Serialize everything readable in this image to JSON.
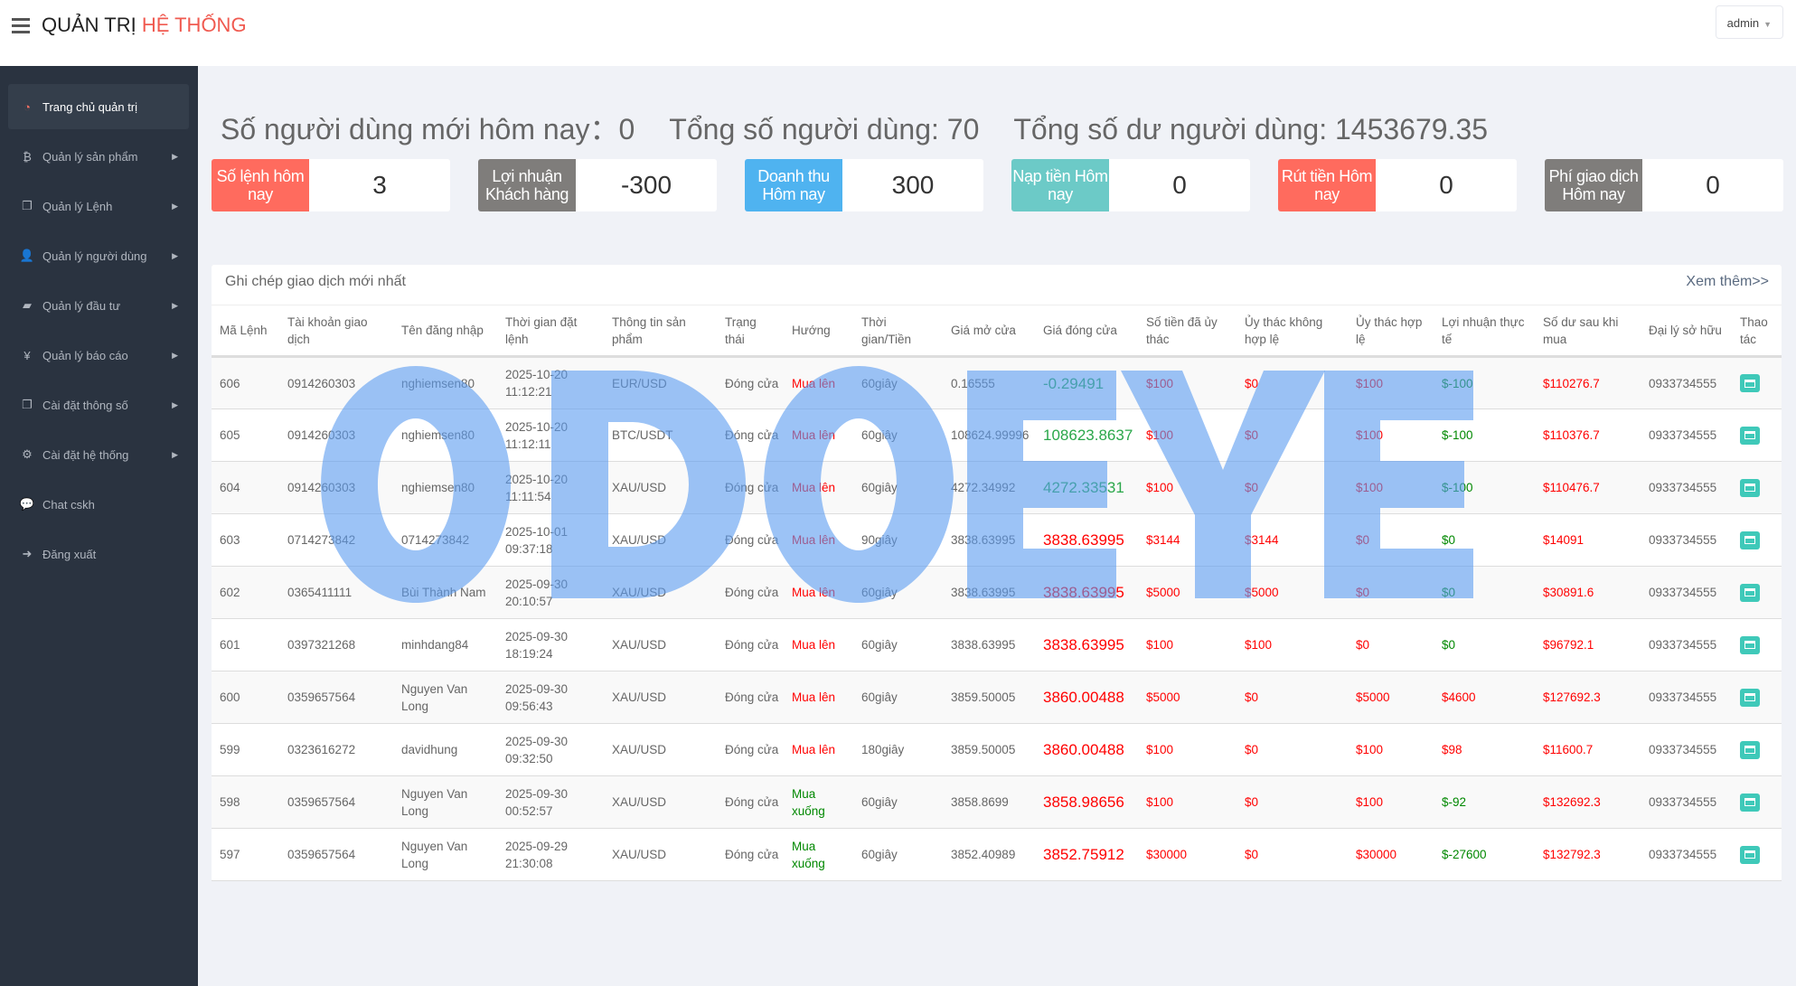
{
  "header": {
    "brand_part1": "QUẢN TRỊ",
    "brand_part2": "HỆ THỐNG",
    "user": "admin"
  },
  "sidebar": {
    "items": [
      {
        "label": "Trang chủ quản trị",
        "icon": "dashboard-icon",
        "glyph": "◔",
        "active": true
      },
      {
        "label": "Quản lý sản phẩm",
        "icon": "bitcoin-icon",
        "glyph": "₿"
      },
      {
        "label": "Quản lý Lệnh",
        "icon": "copy-icon",
        "glyph": "❐"
      },
      {
        "label": "Quản lý người dùng",
        "icon": "user-icon",
        "glyph": "👤"
      },
      {
        "label": "Quản lý đầu tư",
        "icon": "book-icon",
        "glyph": "▰"
      },
      {
        "label": "Quản lý báo cáo",
        "icon": "yen-icon",
        "glyph": "¥"
      },
      {
        "label": "Cài đặt thông số",
        "icon": "copy-icon",
        "glyph": "❐"
      },
      {
        "label": "Cài đặt hệ thống",
        "icon": "gears-icon",
        "glyph": "⚙"
      },
      {
        "label": "Chat cskh",
        "icon": "chat-icon",
        "glyph": "💬"
      },
      {
        "label": "Đăng xuất",
        "icon": "sign-out-icon",
        "glyph": "➜"
      }
    ]
  },
  "summary": {
    "new_users": "Số người dùng mới hôm nay：0",
    "total_users": "Tổng số người dùng: 70",
    "total_balance": "Tổng số dư người dùng: 1453679.35"
  },
  "stats": [
    {
      "label": "Số lệnh hôm nay",
      "value": "3",
      "color": "#ff6b5e"
    },
    {
      "label": "Lợi nhuận Khách hàng",
      "value": "-300",
      "color": "#7f7d7b"
    },
    {
      "label": "Doanh thu Hôm nay",
      "value": "300",
      "color": "#4fb3f0"
    },
    {
      "label": "Nạp tiền Hôm nay",
      "value": "0",
      "color": "#6ccac7"
    },
    {
      "label": "Rút tiền Hôm nay",
      "value": "0",
      "color": "#ff6b5e"
    },
    {
      "label": "Phí giao dịch Hôm nay",
      "value": "0",
      "color": "#7f7d7b"
    }
  ],
  "table": {
    "title": "Ghi chép giao dịch mới nhất",
    "more": "Xem thêm>>",
    "columns": [
      "Mã Lệnh",
      "Tài khoản giao dịch",
      "Tên đăng nhập",
      "Thời gian đặt lệnh",
      "Thông tin sản phẩm",
      "Trạng thái",
      "Hướng",
      "Thời gian/Tiền",
      "Giá mở cửa",
      "Giá đóng cửa",
      "Số tiền đã ủy thác",
      "Ủy thác không hợp lệ",
      "Ủy thác hợp lệ",
      "Lợi nhuận thực tế",
      "Số dư sau khi mua",
      "Đại lý sở hữu",
      "Thao tác"
    ],
    "rows": [
      {
        "id": "606",
        "account": "0914260303",
        "username": "nghiemsen80",
        "time": "2025-10-20 11:12:21",
        "product": "EUR/USD",
        "status": "Đóng cửa",
        "direction": "Mua lên",
        "dir_up": true,
        "duration": "60giây",
        "open": "0.16555",
        "close": "-0.29491",
        "close_up": false,
        "entrusted": "$100",
        "invalid": "$0",
        "valid": "$100",
        "profit": "$-100",
        "profit_neg": true,
        "balance": "$110276.7",
        "agent": "0933734555"
      },
      {
        "id": "605",
        "account": "0914260303",
        "username": "nghiemsen80",
        "time": "2025-10-20 11:12:11",
        "product": "BTC/USDT",
        "status": "Đóng cửa",
        "direction": "Mua lên",
        "dir_up": true,
        "duration": "60giây",
        "open": "108624.99996",
        "close": "108623.8637",
        "close_up": false,
        "entrusted": "$100",
        "invalid": "$0",
        "valid": "$100",
        "profit": "$-100",
        "profit_neg": true,
        "balance": "$110376.7",
        "agent": "0933734555"
      },
      {
        "id": "604",
        "account": "0914260303",
        "username": "nghiemsen80",
        "time": "2025-10-20 11:11:54",
        "product": "XAU/USD",
        "status": "Đóng cửa",
        "direction": "Mua lên",
        "dir_up": true,
        "duration": "60giây",
        "open": "4272.34992",
        "close": "4272.33531",
        "close_up": false,
        "entrusted": "$100",
        "invalid": "$0",
        "valid": "$100",
        "profit": "$-100",
        "profit_neg": true,
        "balance": "$110476.7",
        "agent": "0933734555"
      },
      {
        "id": "603",
        "account": "0714273842",
        "username": "0714273842",
        "time": "2025-10-01 09:37:18",
        "product": "XAU/USD",
        "status": "Đóng cửa",
        "direction": "Mua lên",
        "dir_up": true,
        "duration": "90giây",
        "open": "3838.63995",
        "close": "3838.63995",
        "close_up": true,
        "entrusted": "$3144",
        "invalid": "$3144",
        "valid": "$0",
        "profit": "$0",
        "profit_neg": true,
        "balance": "$14091",
        "agent": "0933734555"
      },
      {
        "id": "602",
        "account": "0365411111",
        "username": "Bùi Thành Nam",
        "time": "2025-09-30 20:10:57",
        "product": "XAU/USD",
        "status": "Đóng cửa",
        "direction": "Mua lên",
        "dir_up": true,
        "duration": "60giây",
        "open": "3838.63995",
        "close": "3838.63995",
        "close_up": true,
        "entrusted": "$5000",
        "invalid": "$5000",
        "valid": "$0",
        "profit": "$0",
        "profit_neg": true,
        "balance": "$30891.6",
        "agent": "0933734555"
      },
      {
        "id": "601",
        "account": "0397321268",
        "username": "minhdang84",
        "time": "2025-09-30 18:19:24",
        "product": "XAU/USD",
        "status": "Đóng cửa",
        "direction": "Mua lên",
        "dir_up": true,
        "duration": "60giây",
        "open": "3838.63995",
        "close": "3838.63995",
        "close_up": true,
        "entrusted": "$100",
        "invalid": "$100",
        "valid": "$0",
        "profit": "$0",
        "profit_neg": true,
        "balance": "$96792.1",
        "agent": "0933734555"
      },
      {
        "id": "600",
        "account": "0359657564",
        "username": "Nguyen Van Long",
        "time": "2025-09-30 09:56:43",
        "product": "XAU/USD",
        "status": "Đóng cửa",
        "direction": "Mua lên",
        "dir_up": true,
        "duration": "60giây",
        "open": "3859.50005",
        "close": "3860.00488",
        "close_up": true,
        "entrusted": "$5000",
        "invalid": "$0",
        "valid": "$5000",
        "profit": "$4600",
        "profit_neg": false,
        "balance": "$127692.3",
        "agent": "0933734555"
      },
      {
        "id": "599",
        "account": "0323616272",
        "username": "davidhung",
        "time": "2025-09-30 09:32:50",
        "product": "XAU/USD",
        "status": "Đóng cửa",
        "direction": "Mua lên",
        "dir_up": true,
        "duration": "180giây",
        "open": "3859.50005",
        "close": "3860.00488",
        "close_up": true,
        "entrusted": "$100",
        "invalid": "$0",
        "valid": "$100",
        "profit": "$98",
        "profit_neg": false,
        "balance": "$11600.7",
        "agent": "0933734555"
      },
      {
        "id": "598",
        "account": "0359657564",
        "username": "Nguyen Van Long",
        "time": "2025-09-30 00:52:57",
        "product": "XAU/USD",
        "status": "Đóng cửa",
        "direction": "Mua xuống",
        "dir_up": false,
        "duration": "60giây",
        "open": "3858.8699",
        "close": "3858.98656",
        "close_up": true,
        "entrusted": "$100",
        "invalid": "$0",
        "valid": "$100",
        "profit": "$-92",
        "profit_neg": true,
        "balance": "$132692.3",
        "agent": "0933734555"
      },
      {
        "id": "597",
        "account": "0359657564",
        "username": "Nguyen Van Long",
        "time": "2025-09-29 21:30:08",
        "product": "XAU/USD",
        "status": "Đóng cửa",
        "direction": "Mua xuống",
        "dir_up": false,
        "duration": "60giây",
        "open": "3852.40989",
        "close": "3852.75912",
        "close_up": true,
        "entrusted": "$30000",
        "invalid": "$0",
        "valid": "$30000",
        "profit": "$-27600",
        "profit_neg": true,
        "balance": "$132792.3",
        "agent": "0933734555"
      }
    ]
  },
  "watermark": "ODOEYE"
}
